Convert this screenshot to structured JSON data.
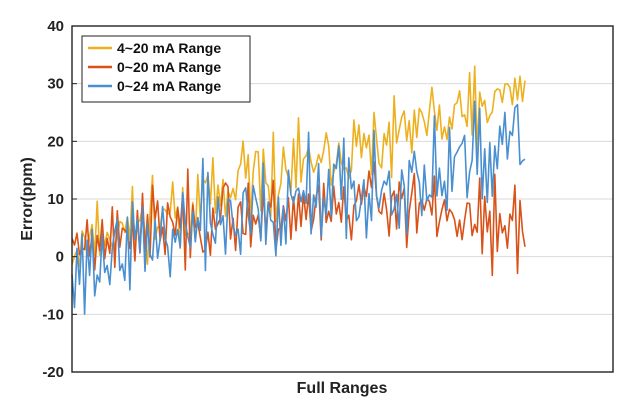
{
  "chart_data": {
    "type": "line",
    "title": "",
    "xlabel": "Full Ranges",
    "ylabel": "Error(ppm)",
    "ylim": [
      -20,
      40
    ],
    "yticks": [
      -20,
      -10,
      0,
      10,
      20,
      30,
      40
    ],
    "xticks": [],
    "grid": "horizontal",
    "legend_position": "top-left",
    "n_points": 181,
    "series": [
      {
        "name": "4~20 mA Range",
        "color": "#EDB120",
        "trend": {
          "start": 2,
          "end": 28,
          "noise": 4.5,
          "seed": 11
        }
      },
      {
        "name": "0~20 mA Range",
        "color": "#D95319",
        "trend": {
          "start": 3,
          "end": 4,
          "mid": 10,
          "noise": 4,
          "seed": 23
        }
      },
      {
        "name": "0~24 mA Range",
        "color": "#4A8FD0",
        "trend": {
          "start": 0,
          "end": 18,
          "noise": 5.5,
          "seed": 37
        }
      }
    ]
  }
}
